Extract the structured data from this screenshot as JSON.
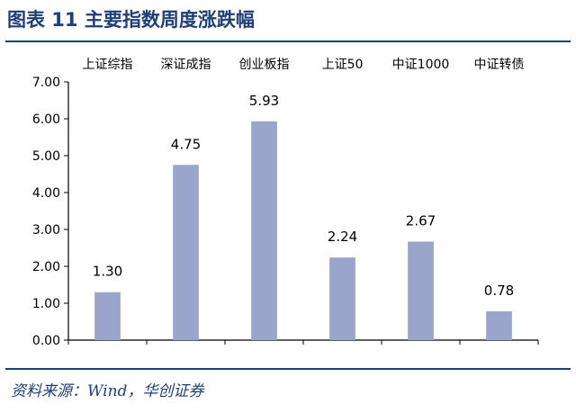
{
  "header": {
    "title": "图表 11  主要指数周度涨跌幅"
  },
  "footer": {
    "source": "资料来源：Wind，华创证券"
  },
  "chart_data": {
    "type": "bar",
    "categories": [
      "上证综指",
      "深证成指",
      "创业板指",
      "上证50",
      "中证1000",
      "中证转债"
    ],
    "values": [
      1.3,
      4.75,
      5.93,
      2.24,
      2.67,
      0.78
    ],
    "value_labels": [
      "1.30",
      "4.75",
      "5.93",
      "2.24",
      "2.67",
      "0.78"
    ],
    "ylim": [
      0,
      7
    ],
    "yticks": [
      "0.00",
      "1.00",
      "2.00",
      "3.00",
      "4.00",
      "5.00",
      "6.00",
      "7.00"
    ],
    "category_axis_position": "top",
    "grid": false,
    "bar_color": "#99a5cb"
  }
}
